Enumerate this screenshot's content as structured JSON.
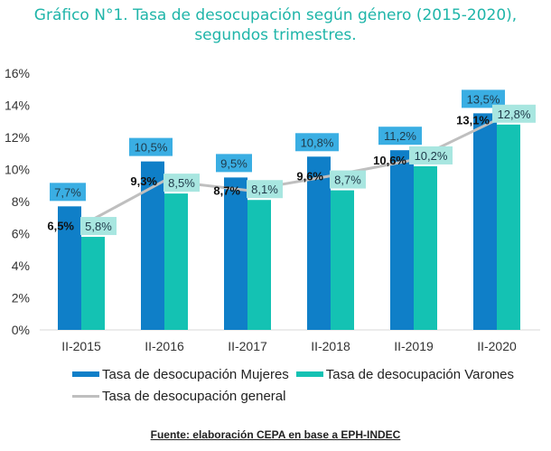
{
  "chart_data": {
    "type": "bar",
    "title": "Gráfico N°1. Tasa de desocupación según género (2015-2020), segundos trimestres.",
    "categories": [
      "II-2015",
      "II-2016",
      "II-2017",
      "II-2018",
      "II-2019",
      "II-2020"
    ],
    "series": [
      {
        "name": "Tasa de desocupación  Mujeres",
        "kind": "bar",
        "color": "#0f7fc8",
        "label_bg": "#3aaee3",
        "values": [
          7.7,
          10.5,
          9.5,
          10.8,
          11.2,
          13.5
        ],
        "labels": [
          "7,7%",
          "10,5%",
          "9,5%",
          "10,8%",
          "11,2%",
          "13,5%"
        ]
      },
      {
        "name": "Tasa de desocupación Varones",
        "kind": "bar",
        "color": "#14c2b3",
        "label_bg": "#a8e6e0",
        "values": [
          5.8,
          8.5,
          8.1,
          8.7,
          10.2,
          12.8
        ],
        "labels": [
          "5,8%",
          "8,5%",
          "8,1%",
          "8,7%",
          "10,2%",
          "12,8%"
        ]
      },
      {
        "name": "Tasa de desocupación general",
        "kind": "line",
        "color": "#bfbfbf",
        "values": [
          6.5,
          9.3,
          8.7,
          9.6,
          10.6,
          13.1
        ],
        "labels": [
          "6,5%",
          "9,3%",
          "8,7%",
          "9,6%",
          "10,6%",
          "13,1%"
        ]
      }
    ],
    "y_ticks": [
      "0%",
      "2%",
      "4%",
      "6%",
      "8%",
      "10%",
      "12%",
      "14%",
      "16%"
    ],
    "ylim": [
      0,
      16
    ],
    "xlabel": "",
    "ylabel": "",
    "grid": false,
    "legend": "bottom"
  },
  "title_line1": "Gráfico N°1. Tasa de desocupación según género (2015-2020),",
  "title_line2": "segundos trimestres.",
  "legend": {
    "mujeres": "Tasa de desocupación  Mujeres",
    "varones": "Tasa de desocupación Varones",
    "general": "Tasa de desocupación general"
  },
  "source": "Fuente: elaboración CEPA en base a EPH-INDEC"
}
